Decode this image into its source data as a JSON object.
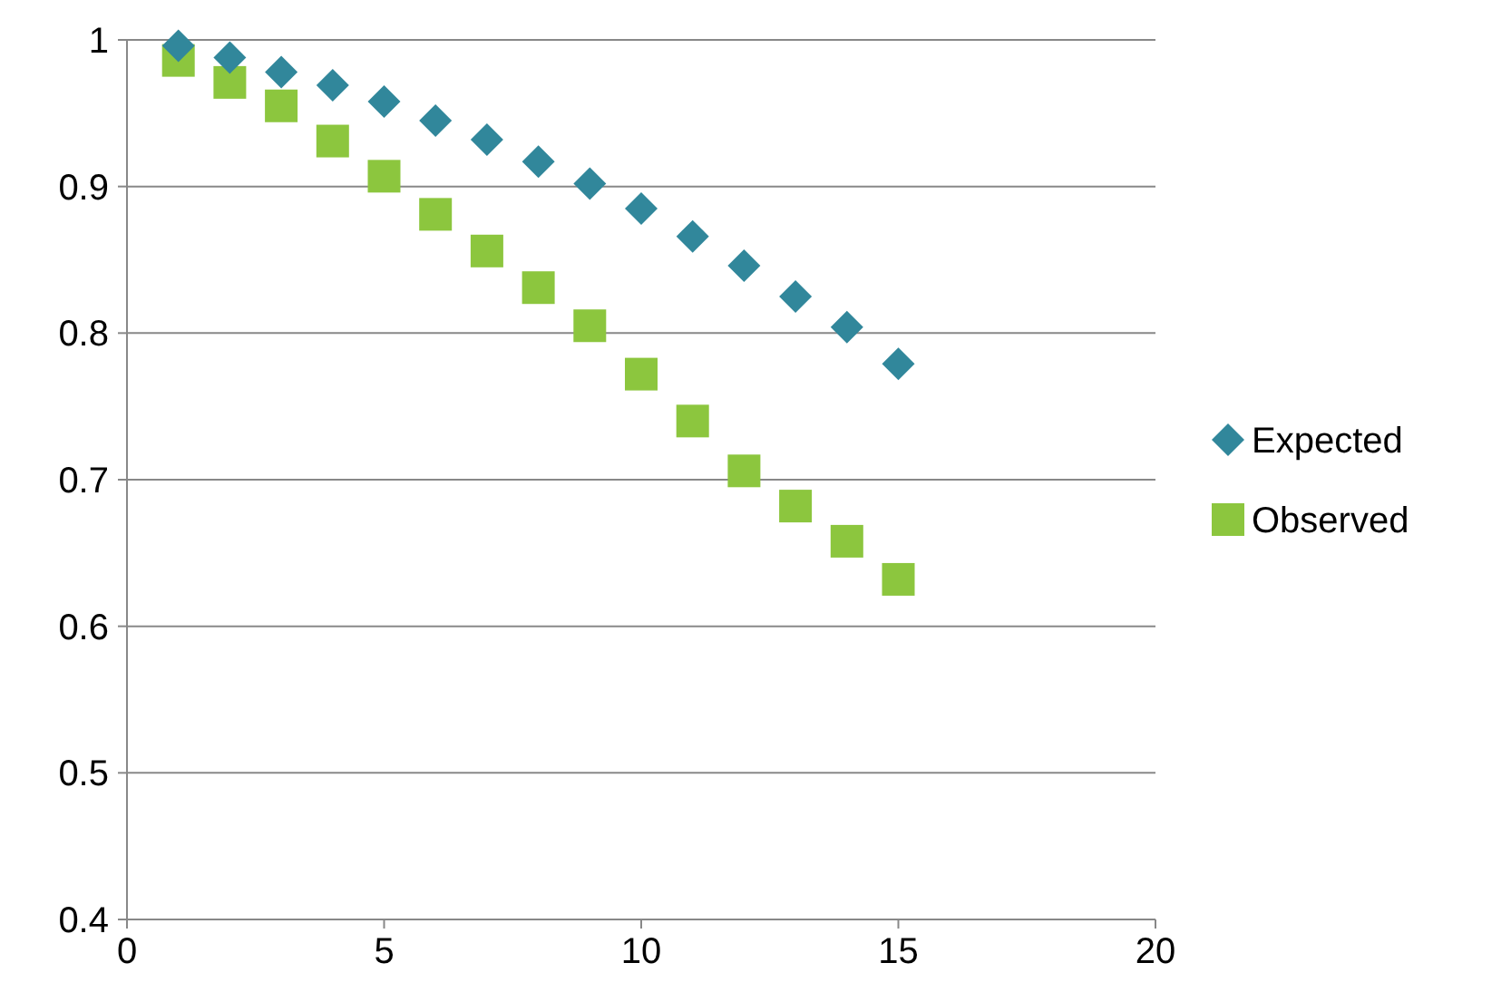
{
  "chart_data": {
    "type": "scatter",
    "x": [
      1,
      2,
      3,
      4,
      5,
      6,
      7,
      8,
      9,
      10,
      11,
      12,
      13,
      14,
      15
    ],
    "series": [
      {
        "name": "Expected",
        "color": "#31879b",
        "marker": "diamond",
        "values": [
          0.996,
          0.988,
          0.978,
          0.969,
          0.958,
          0.945,
          0.932,
          0.917,
          0.902,
          0.885,
          0.866,
          0.846,
          0.825,
          0.804,
          0.779
        ]
      },
      {
        "name": "Observed",
        "color": "#8cc63e",
        "marker": "square",
        "values": [
          0.986,
          0.971,
          0.955,
          0.931,
          0.907,
          0.881,
          0.856,
          0.831,
          0.805,
          0.772,
          0.74,
          0.706,
          0.682,
          0.658,
          0.632
        ]
      }
    ],
    "xlim": [
      0,
      20
    ],
    "xticks": [
      0,
      5,
      10,
      15,
      20
    ],
    "ylim": [
      0.4,
      1
    ],
    "yticks": [
      0.4,
      0.5,
      0.6,
      0.7,
      0.8,
      0.9,
      1
    ],
    "grid": "y",
    "legend": "right"
  }
}
